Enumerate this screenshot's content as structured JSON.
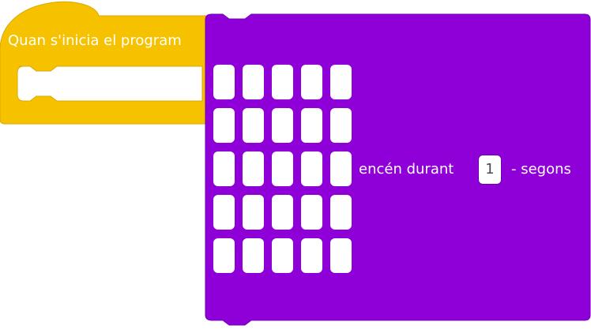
{
  "colors": {
    "hat_block": "#f6c200",
    "hat_block_edge": "#d9a800",
    "action_block": "#8f00d8",
    "action_block_edge": "#6f00b8",
    "led_off": "#ffffff",
    "text": "#ffffff"
  },
  "hat_block": {
    "label": "Quan s'inicia el program"
  },
  "show_leds_block": {
    "text_before": "encén durant",
    "duration_value": "1",
    "text_after": "- segons",
    "leds": [
      [
        0,
        0,
        0,
        0,
        0
      ],
      [
        0,
        0,
        0,
        0,
        0
      ],
      [
        0,
        0,
        0,
        0,
        0
      ],
      [
        0,
        0,
        0,
        0,
        0
      ],
      [
        0,
        0,
        0,
        0,
        0
      ]
    ]
  }
}
